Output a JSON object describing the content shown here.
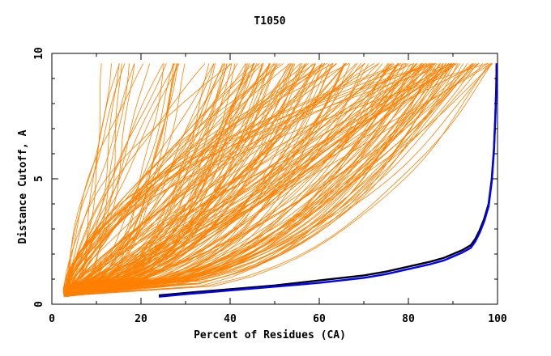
{
  "chart_data": {
    "type": "line",
    "title": "T1050",
    "xlabel": "Percent of Residues (CA)",
    "ylabel": "Distance Cutoff, A",
    "xlim": [
      0,
      100
    ],
    "ylim": [
      0,
      10
    ],
    "x_ticks": [
      0,
      20,
      40,
      60,
      80,
      100
    ],
    "y_ticks": [
      0,
      5,
      10
    ],
    "grid": false,
    "legend": "none",
    "colors": {
      "models": "#ff8000",
      "black_curve": "#000000",
      "blue_curve": "#0000ff"
    },
    "orange_bundle": {
      "model_count": 200,
      "curve_start": {
        "x": 2.5,
        "y": 0.3
      },
      "curve_end_y": 9.6,
      "endpoint_x_range": [
        10,
        99
      ],
      "endpoint_range_note": "each curve starts near x=2.5% at y~0.3 and ends at y~9.6 with x between ~10% and ~99%"
    },
    "series": [
      {
        "color": "#000000",
        "x": [
          24,
          30,
          40,
          50,
          60,
          70,
          75,
          80,
          85,
          88,
          90,
          92,
          94,
          95,
          96,
          97,
          98,
          98.7,
          99.2,
          99.5,
          99.7,
          99.8
        ],
        "y": [
          0.35,
          0.45,
          0.6,
          0.75,
          0.95,
          1.15,
          1.3,
          1.5,
          1.7,
          1.85,
          2.0,
          2.15,
          2.35,
          2.6,
          2.95,
          3.4,
          4.0,
          5.0,
          6.2,
          7.5,
          8.6,
          9.6
        ]
      },
      {
        "color": "#0000ff",
        "x": [
          24,
          30,
          40,
          50,
          60,
          70,
          75,
          80,
          85,
          88,
          90,
          92,
          94,
          95,
          96,
          97,
          98,
          98.7,
          99.2,
          99.5,
          99.7,
          99.8
        ],
        "y": [
          0.3,
          0.4,
          0.55,
          0.7,
          0.85,
          1.05,
          1.2,
          1.4,
          1.6,
          1.75,
          1.9,
          2.05,
          2.25,
          2.5,
          2.85,
          3.3,
          3.9,
          4.9,
          6.1,
          7.4,
          8.5,
          9.6
        ]
      }
    ]
  }
}
